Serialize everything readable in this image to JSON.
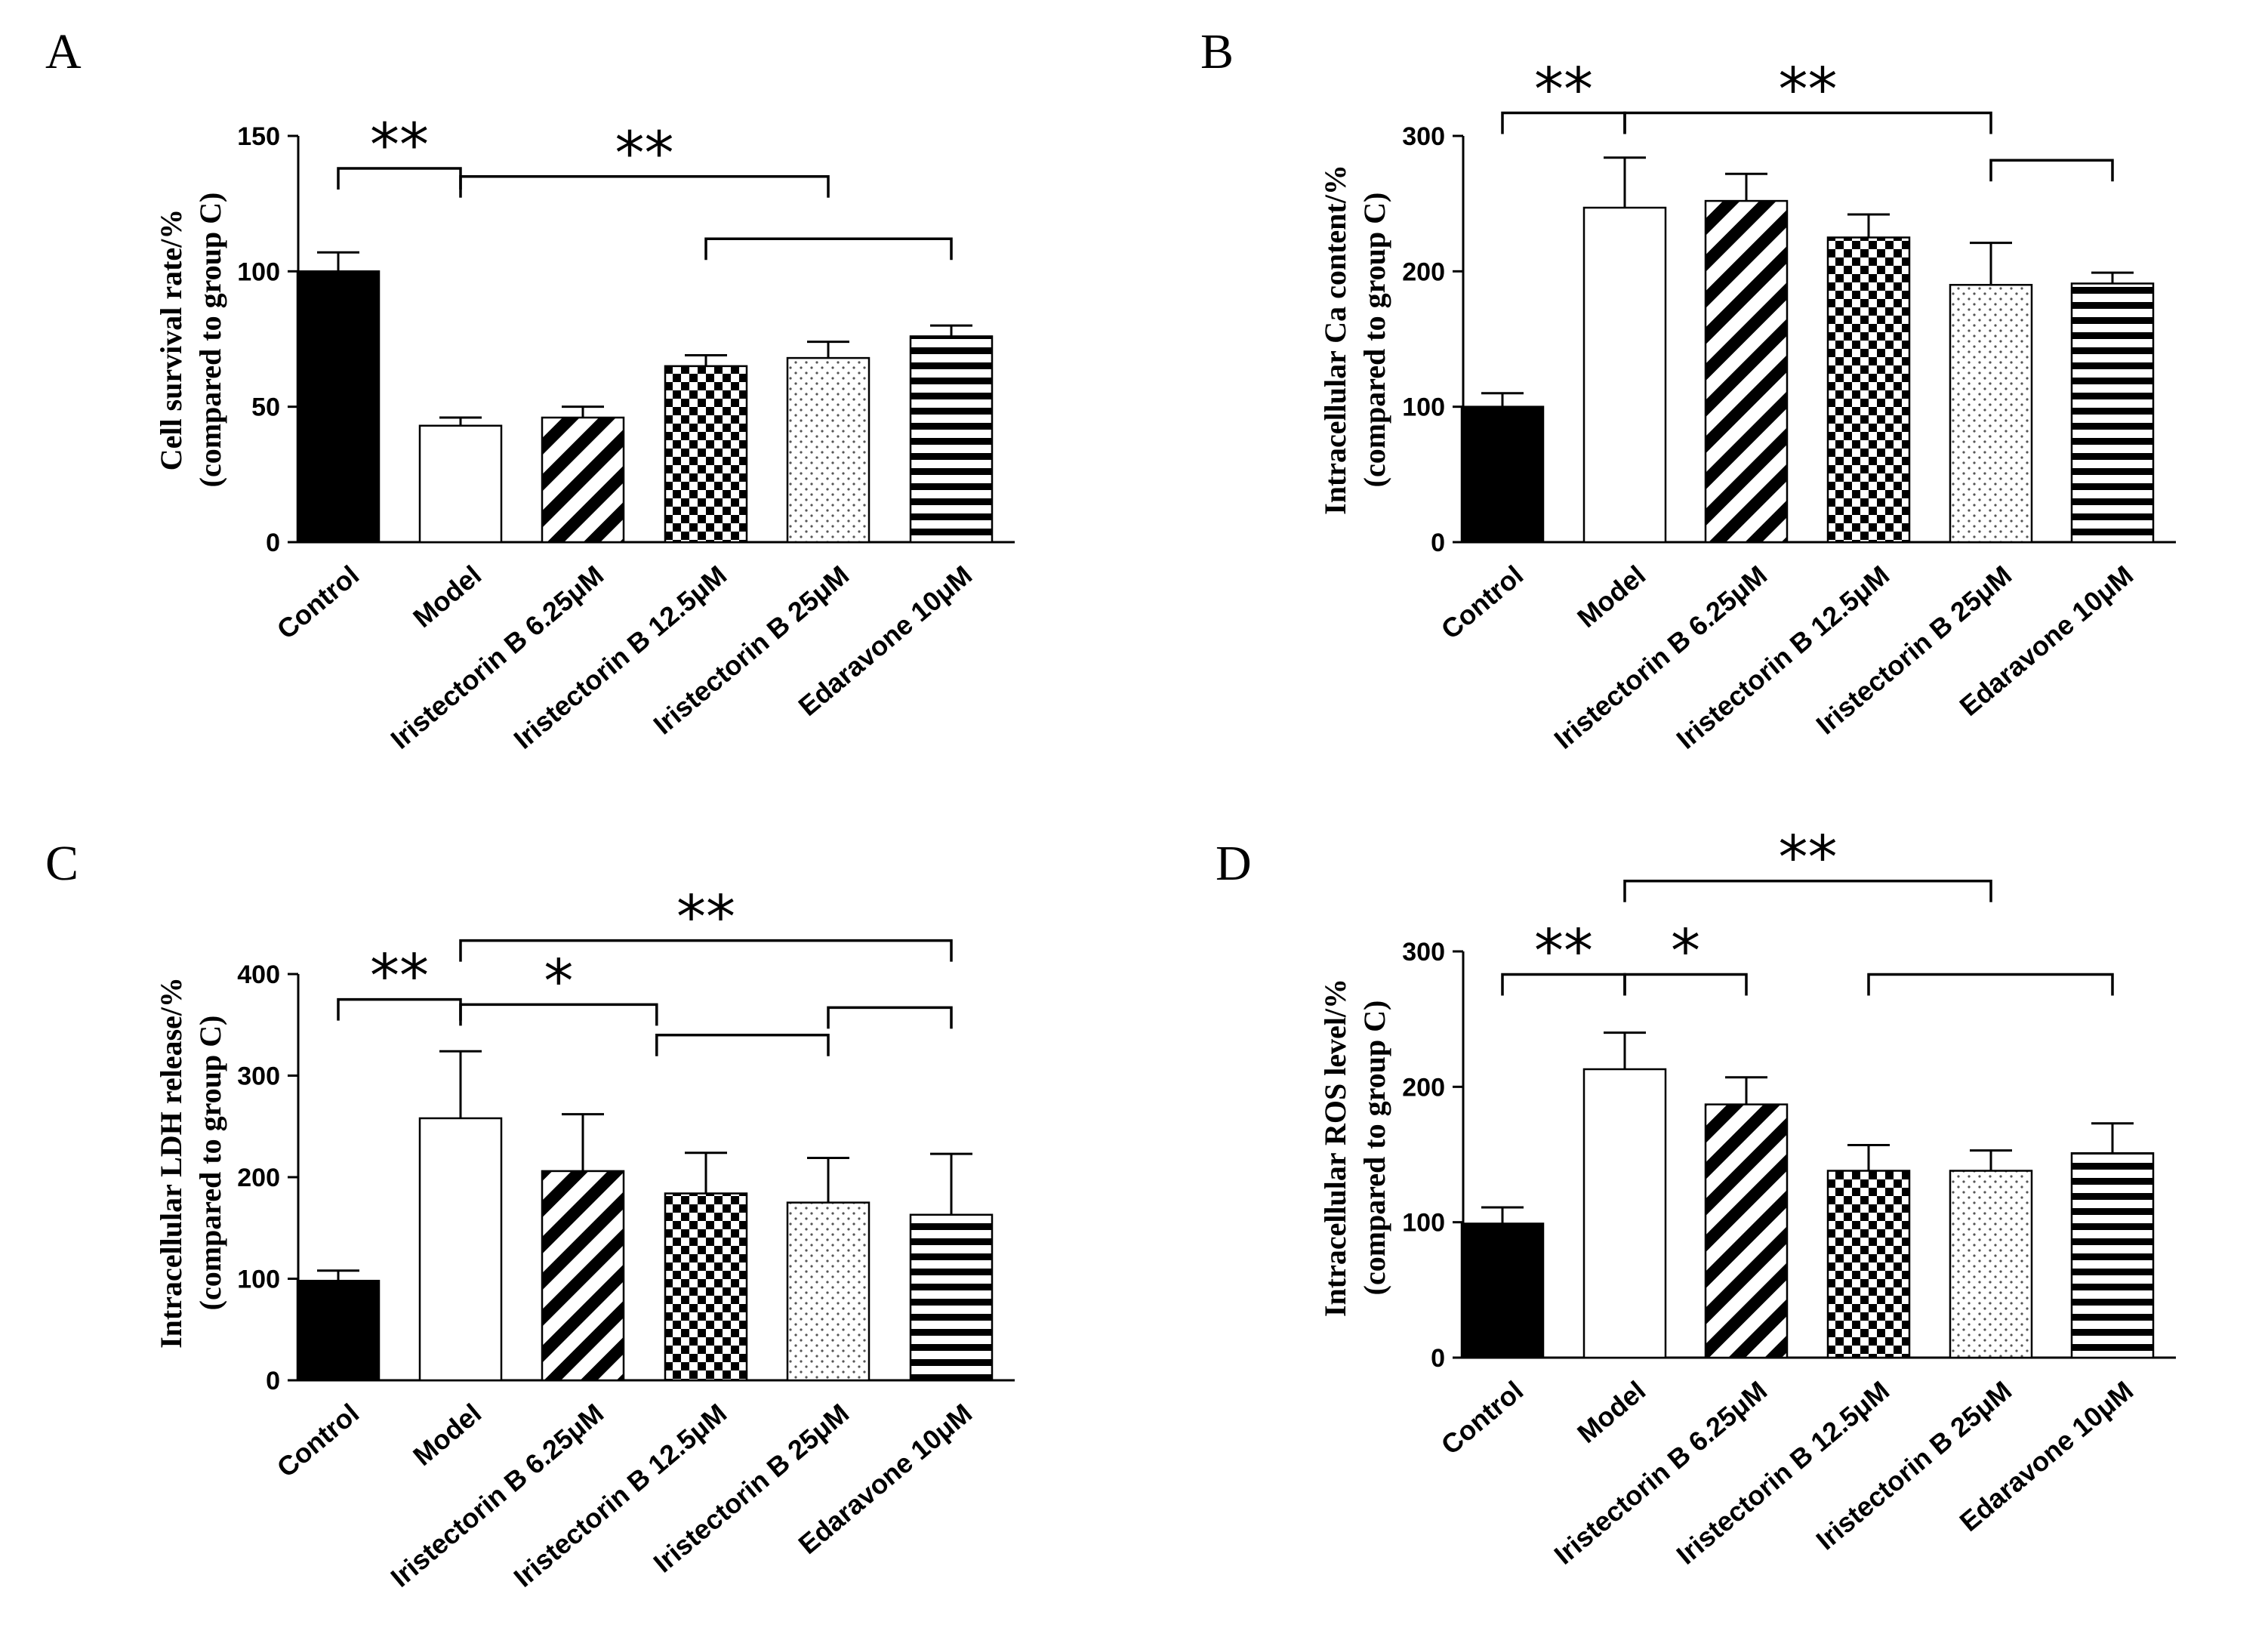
{
  "chart_data": [
    {
      "type": "bar",
      "panel": "A",
      "ylabel_line1": "Cell survival rate/%",
      "ylabel_line2": "(compared to group C)",
      "ylim": [
        0,
        150
      ],
      "yticks": [
        0,
        50,
        100,
        150
      ],
      "categories": [
        "Control",
        "Model",
        "Iristectorin B 6.25μM",
        "Iristectorin B 12.5μM",
        "Iristectorin B 25μM",
        "Edaravone 10μM"
      ],
      "values": [
        100,
        43,
        46,
        65,
        68,
        76
      ],
      "errors": [
        7,
        3,
        4,
        4,
        6,
        4
      ],
      "patterns": [
        "solid",
        "open",
        "diagonal",
        "checker",
        "dots",
        "hlines"
      ],
      "significance": [
        {
          "from": 0,
          "to": 1,
          "label": "**",
          "y": 138
        },
        {
          "from": 1,
          "to": 4,
          "label": "**",
          "y": 135
        },
        {
          "from": 3,
          "to": 5,
          "label": "",
          "y": 112
        }
      ]
    },
    {
      "type": "bar",
      "panel": "B",
      "ylabel_line1": "Intracellular Ca content/%",
      "ylabel_line2": "(compared to group C)",
      "ylim": [
        0,
        300
      ],
      "yticks": [
        0,
        100,
        200,
        300
      ],
      "categories": [
        "Control",
        "Model",
        "Iristectorin B 6.25μM",
        "Iristectorin B 12.5μM",
        "Iristectorin B 25μM",
        "Edaravone 10μM"
      ],
      "values": [
        100,
        247,
        252,
        225,
        190,
        191
      ],
      "errors": [
        10,
        37,
        20,
        17,
        31,
        8
      ],
      "patterns": [
        "solid",
        "open",
        "diagonal",
        "checker",
        "dots",
        "hlines"
      ],
      "significance": [
        {
          "from": 0,
          "to": 1,
          "label": "**",
          "y": 317
        },
        {
          "from": 1,
          "to": 4,
          "label": "**",
          "y": 317
        },
        {
          "from": 4,
          "to": 5,
          "label": "",
          "y": 282
        }
      ]
    },
    {
      "type": "bar",
      "panel": "C",
      "ylabel_line1": "Intracellular LDH release/%",
      "ylabel_line2": "(compared to group C)",
      "ylim": [
        0,
        400
      ],
      "yticks": [
        0,
        100,
        200,
        300,
        400
      ],
      "categories": [
        "Control",
        "Model",
        "Iristectorin B 6.25μM",
        "Iristectorin B 12.5μM",
        "Iristectorin B 25μM",
        "Edaravone 10μM"
      ],
      "values": [
        98,
        258,
        206,
        184,
        175,
        163
      ],
      "errors": [
        10,
        66,
        56,
        40,
        44,
        60
      ],
      "patterns": [
        "solid",
        "open",
        "diagonal",
        "checker",
        "dots",
        "hlines"
      ],
      "significance": [
        {
          "from": 0,
          "to": 1,
          "label": "**",
          "y": 375
        },
        {
          "from": 1,
          "to": 5,
          "label": "**",
          "y": 433
        },
        {
          "from": 1,
          "to": 2.6,
          "label": "*",
          "y": 370
        },
        {
          "from": 2.6,
          "to": 4,
          "label": "",
          "y": 340
        },
        {
          "from": 4,
          "to": 5,
          "label": "",
          "y": 367
        }
      ]
    },
    {
      "type": "bar",
      "panel": "D",
      "ylabel_line1": "Intracellular ROS level/%",
      "ylabel_line2": "(compared to group C)",
      "ylim": [
        0,
        300
      ],
      "yticks": [
        0,
        100,
        200,
        300
      ],
      "categories": [
        "Control",
        "Model",
        "Iristectorin B 6.25μM",
        "Iristectorin B 12.5μM",
        "Iristectorin B 25μM",
        "Edaravone 10μM"
      ],
      "values": [
        99,
        213,
        187,
        138,
        138,
        151
      ],
      "errors": [
        12,
        27,
        20,
        19,
        15,
        22
      ],
      "patterns": [
        "solid",
        "open",
        "diagonal",
        "checker",
        "dots",
        "hlines"
      ],
      "significance": [
        {
          "from": 0,
          "to": 1,
          "label": "**",
          "y": 283
        },
        {
          "from": 1,
          "to": 2,
          "label": "*",
          "y": 283
        },
        {
          "from": 1,
          "to": 4,
          "label": "**",
          "y": 352
        },
        {
          "from": 3,
          "to": 5,
          "label": "",
          "y": 283
        }
      ]
    }
  ]
}
